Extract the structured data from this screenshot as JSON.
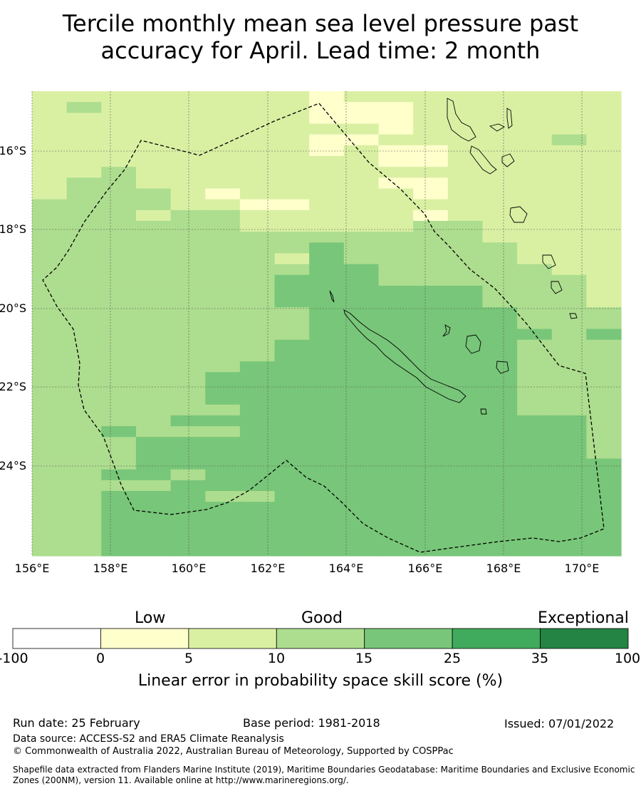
{
  "title_line1": "Tercile monthly mean sea level pressure past",
  "title_line2": "accuracy for April. Lead time: 2 month",
  "map": {
    "lon_labels": [
      "156°E",
      "158°E",
      "160°E",
      "162°E",
      "164°E",
      "166°E",
      "168°E",
      "170°E"
    ],
    "lat_labels": [
      "16°S",
      "18°S",
      "20°S",
      "22°S",
      "24°S"
    ],
    "grid_rows": [
      "22222222122222222",
      "23222222111222222",
      "22222222111222222",
      "22222222221222222",
      "22222222112222232",
      "22222222121122222",
      "22222222221122222",
      "22322222222222222",
      "23322222221122222",
      "23332122222122222",
      "33332211222222222",
      "33323322222122222",
      "33333322222332222",
      "33333333333332222",
      "33333333433333222",
      "33333332433333222",
      "33333333443333322",
      "33333334443333332",
      "33333334444443332",
      "33333334444443332",
      "33333333444444333",
      "33333333444444333",
      "33333333444444434",
      "33333334444444333",
      "33333334444444333",
      "33333344444444333",
      "33333444444444333",
      "33333444444444333",
      "33333444444444333",
      "33333344444444333",
      "33334444444444443",
      "33433344444444443",
      "33344444444444443",
      "33344444444444443",
      "33344444444444444",
      "33443444444444444",
      "33334444444444444",
      "33444334444444444",
      "33444444444444444",
      "33444444444444444",
      "33444444444444444",
      "33444444444444444",
      "33444444444444444"
    ]
  },
  "colorbar": {
    "colors": [
      "#ffffff",
      "#ffffcc",
      "#d9f0a3",
      "#addd8e",
      "#78c679",
      "#41ab5d",
      "#238443"
    ],
    "ticks": [
      "-100",
      "0",
      "5",
      "10",
      "15",
      "25",
      "35",
      "100"
    ],
    "category_low": "Low",
    "category_good": "Good",
    "category_exceptional": "Exceptional",
    "label": "Linear error in probability space skill score (%)"
  },
  "footer": {
    "run_date": "Run date: 25 February",
    "base_period": "Base period: 1981-2018",
    "issued": "Issued: 07/01/2022",
    "data_source": "Data source: ACCESS-S2 and ERA5 Climate Reanalysis",
    "copyright": "© Commonwealth of Australia 2022, Australian Bureau of Meteorology, Supported by COSPPac",
    "shapefile_line1": "Shapefile data extracted from Flanders Marine Institute (2019), Maritime Boundaries Geodatabase: Maritime Boundaries and Exclusive Economic",
    "shapefile_line2": "Zones (200NM), version 11. Available online at http://www.marineregions.org/."
  }
}
